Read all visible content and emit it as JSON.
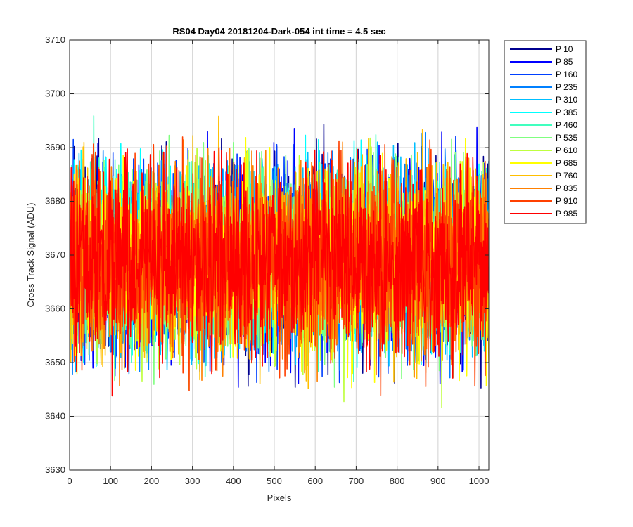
{
  "chart_data": {
    "type": "line",
    "title": "RS04 Day04 20181204-Dark-054 int time = 4.5 sec",
    "xlabel": "Pixels",
    "ylabel": "Cross Track Signal (ADU)",
    "xlim": [
      0,
      1024
    ],
    "ylim": [
      3630,
      3710
    ],
    "xticks": [
      0,
      100,
      200,
      300,
      400,
      500,
      600,
      700,
      800,
      900,
      1000
    ],
    "yticks": [
      3630,
      3640,
      3650,
      3660,
      3670,
      3680,
      3690,
      3700,
      3710
    ],
    "grid": true,
    "legend_position": "outside-top-right",
    "series": [
      {
        "name": "P 10",
        "color": "#00008f",
        "baseline": 3669,
        "range": [
          3644,
          3697
        ]
      },
      {
        "name": "P 85",
        "color": "#0000ff",
        "baseline": 3669,
        "range": [
          3644,
          3695
        ]
      },
      {
        "name": "P 160",
        "color": "#0040ff",
        "baseline": 3669,
        "range": [
          3646,
          3694
        ]
      },
      {
        "name": "P 235",
        "color": "#0080ff",
        "baseline": 3669,
        "range": [
          3647,
          3694
        ]
      },
      {
        "name": "P 310",
        "color": "#00bfff",
        "baseline": 3669,
        "range": [
          3648,
          3692
        ]
      },
      {
        "name": "P 385",
        "color": "#00ffff",
        "baseline": 3669,
        "range": [
          3649,
          3694
        ]
      },
      {
        "name": "P 460",
        "color": "#40ffbf",
        "baseline": 3669,
        "range": [
          3646,
          3701
        ]
      },
      {
        "name": "P 535",
        "color": "#80ff80",
        "baseline": 3669,
        "range": [
          3640,
          3698
        ]
      },
      {
        "name": "P 610",
        "color": "#bfff40",
        "baseline": 3669,
        "range": [
          3639,
          3701
        ]
      },
      {
        "name": "P 685",
        "color": "#ffff00",
        "baseline": 3669,
        "range": [
          3644,
          3692
        ]
      },
      {
        "name": "P 760",
        "color": "#ffbf00",
        "baseline": 3669,
        "range": [
          3645,
          3696
        ]
      },
      {
        "name": "P 835",
        "color": "#ff8000",
        "baseline": 3669,
        "range": [
          3645,
          3692
        ]
      },
      {
        "name": "P 910",
        "color": "#ff4000",
        "baseline": 3669,
        "range": [
          3643,
          3693
        ]
      },
      {
        "name": "P 985",
        "color": "#ff0000",
        "baseline": 3669,
        "range": [
          3643,
          3690
        ]
      }
    ]
  }
}
